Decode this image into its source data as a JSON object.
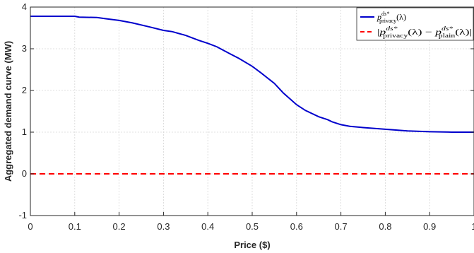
{
  "chart_data": {
    "type": "line",
    "xlabel": "Price ($)",
    "ylabel": "Aggregated demand curve (MW)",
    "xlim": [
      0,
      1
    ],
    "ylim": [
      -1,
      4
    ],
    "grid": true,
    "legend_placement": "top-right",
    "x_ticks": [
      "0",
      "0.1",
      "0.2",
      "0.3",
      "0.4",
      "0.5",
      "0.6",
      "0.7",
      "0.8",
      "0.9",
      "1"
    ],
    "y_ticks": [
      "-1",
      "0",
      "1",
      "2",
      "3",
      "4"
    ],
    "series": [
      {
        "name": "p^{ds*}_{privacy}(λ)",
        "color": "#0000CC",
        "style": "solid",
        "x": [
          0,
          0.05,
          0.1,
          0.11,
          0.15,
          0.17,
          0.2,
          0.23,
          0.27,
          0.3,
          0.32,
          0.35,
          0.38,
          0.4,
          0.42,
          0.45,
          0.47,
          0.5,
          0.52,
          0.55,
          0.57,
          0.6,
          0.62,
          0.65,
          0.67,
          0.68,
          0.7,
          0.72,
          0.75,
          0.8,
          0.85,
          0.9,
          0.95,
          1.0
        ],
        "y": [
          3.78,
          3.78,
          3.78,
          3.76,
          3.75,
          3.72,
          3.68,
          3.62,
          3.52,
          3.44,
          3.41,
          3.32,
          3.2,
          3.13,
          3.05,
          2.88,
          2.77,
          2.58,
          2.42,
          2.17,
          1.94,
          1.66,
          1.52,
          1.37,
          1.3,
          1.25,
          1.18,
          1.14,
          1.11,
          1.07,
          1.03,
          1.01,
          1.0,
          1.0
        ]
      },
      {
        "name": "|p^{ds*}_{privacy}(λ) − p^{ds*}_{plain}(λ)|",
        "color": "#FF0000",
        "style": "dashed",
        "x": [
          0,
          1
        ],
        "y": [
          0,
          0
        ]
      }
    ]
  },
  "legend": {
    "entry1": {
      "base": "p",
      "sup": "ds*",
      "sub": "privacy",
      "tail": "(λ)"
    },
    "entry2": {
      "open": "|",
      "base1": "p",
      "sup1": "ds*",
      "sub1": "privacy",
      "mid": "(λ) − ",
      "base2": "p",
      "sup2": "ds*",
      "sub2": "plain",
      "tail": "(λ)|"
    }
  }
}
